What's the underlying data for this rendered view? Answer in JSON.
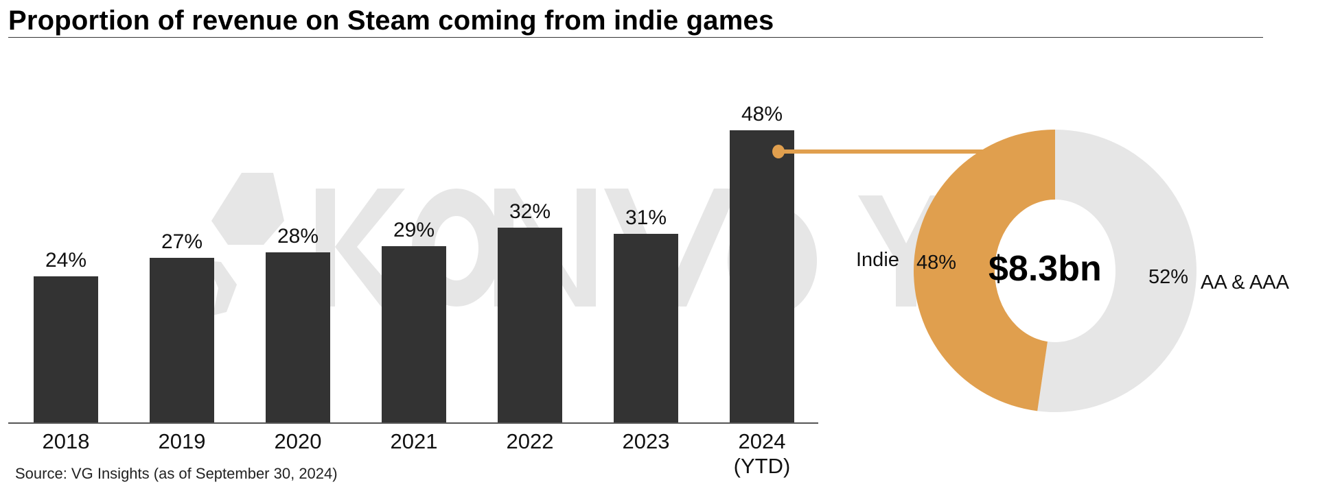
{
  "title": "Proportion of revenue on Steam coming from indie games",
  "source": "Source: VG Insights (as of September 30, 2024)",
  "watermark": "KONVOY",
  "colors": {
    "bar": "#333333",
    "indie": "#E09F4E",
    "aa_aaa": "#E6E6E6",
    "watermark": "#E6E6E6",
    "axis": "#555555"
  },
  "bars": [
    {
      "year": "2018",
      "sub": "",
      "label": "24%",
      "value": 24
    },
    {
      "year": "2019",
      "sub": "",
      "label": "27%",
      "value": 27
    },
    {
      "year": "2020",
      "sub": "",
      "label": "28%",
      "value": 28
    },
    {
      "year": "2021",
      "sub": "",
      "label": "29%",
      "value": 29
    },
    {
      "year": "2022",
      "sub": "",
      "label": "32%",
      "value": 32
    },
    {
      "year": "2023",
      "sub": "",
      "label": "31%",
      "value": 31
    },
    {
      "year": "2024",
      "sub": "(YTD)",
      "label": "48%",
      "value": 48
    }
  ],
  "donut": {
    "total": "$8.3bn",
    "segments": [
      {
        "name": "Indie",
        "label": "48%",
        "value": 48
      },
      {
        "name": "AA & AAA",
        "label": "52%",
        "value": 52
      }
    ]
  },
  "chart_data": [
    {
      "type": "bar",
      "title": "Proportion of revenue on Steam coming from indie games",
      "categories": [
        "2018",
        "2019",
        "2020",
        "2021",
        "2022",
        "2023",
        "2024 (YTD)"
      ],
      "values": [
        24,
        27,
        28,
        29,
        32,
        31,
        48
      ],
      "data_labels": [
        "24%",
        "27%",
        "28%",
        "29%",
        "32%",
        "31%",
        "48%"
      ],
      "xlabel": "",
      "ylabel": "",
      "ylim": [
        0,
        50
      ],
      "grid": false,
      "legend": "none",
      "annotations": [
        "Source: VG Insights (as of September 30, 2024)"
      ]
    },
    {
      "type": "pie",
      "subtype": "donut",
      "title": "2024 (YTD) Steam revenue split",
      "center_label": "$8.3bn",
      "categories": [
        "Indie",
        "AA & AAA"
      ],
      "values": [
        48,
        52
      ],
      "data_labels": [
        "48%",
        "52%"
      ],
      "legend": "inline labels"
    }
  ]
}
